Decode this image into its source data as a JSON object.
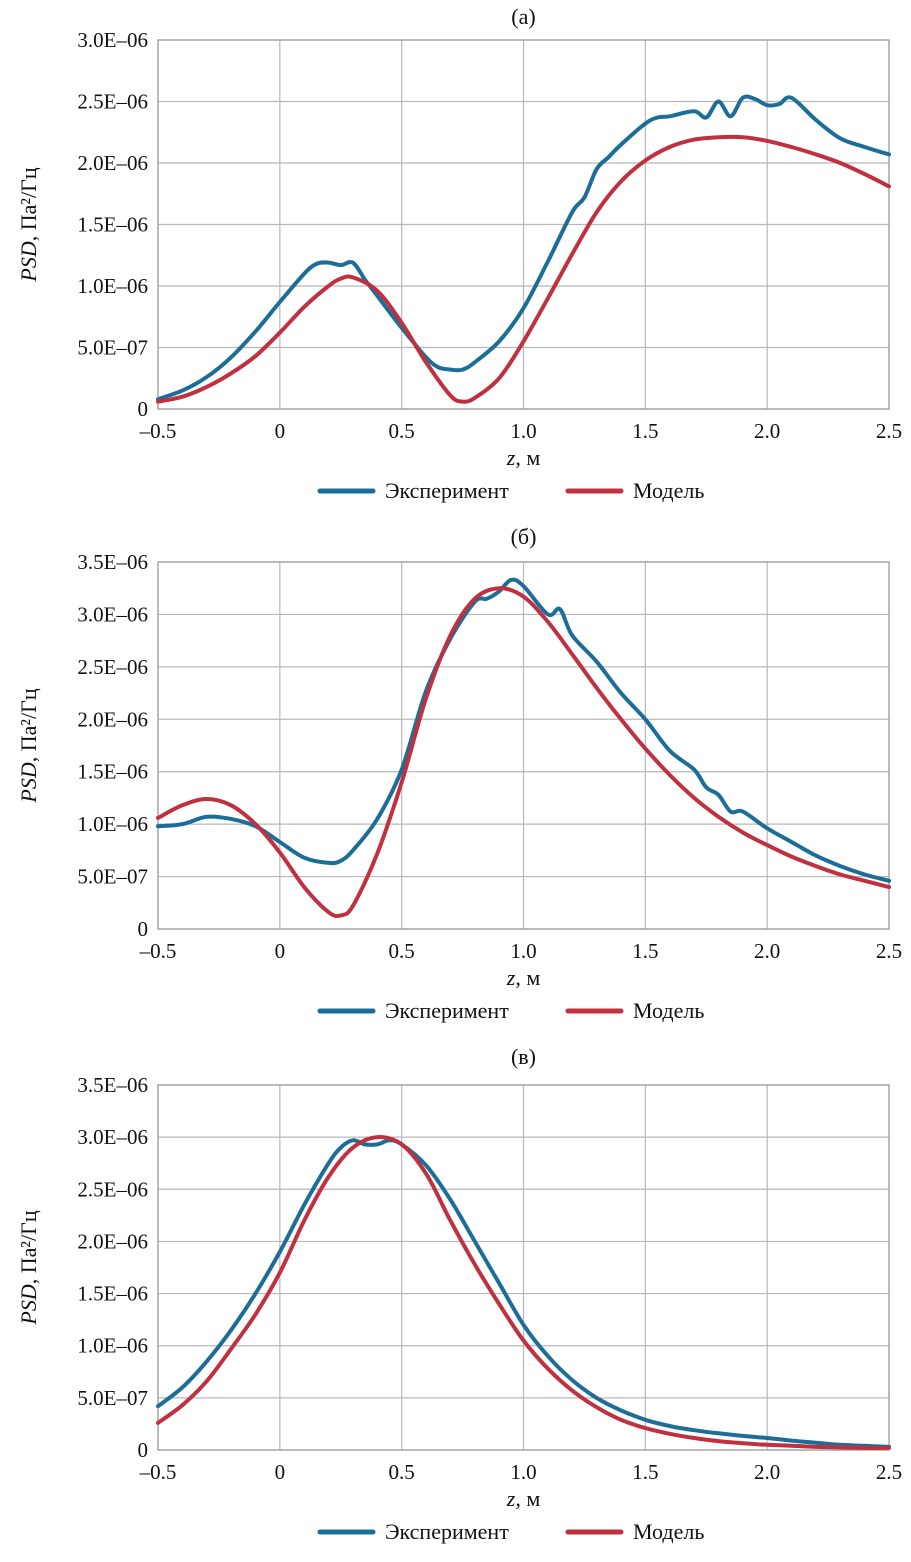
{
  "colors": {
    "experiment": "#1c6e98",
    "model": "#c0303f"
  },
  "chart_data": [
    {
      "type": "line",
      "title": "(а)",
      "xlabel_var": "z",
      "xlabel_unit": ", м",
      "ylabel_var": "PSD",
      "ylabel_unit": ", Па²/Гц",
      "xlim": [
        -0.5,
        2.5
      ],
      "ylim": [
        0,
        3e-06
      ],
      "xticks": [
        -0.5,
        0,
        0.5,
        1.0,
        1.5,
        2.0,
        2.5
      ],
      "xtick_labels": [
        "–0.5",
        "0",
        "0.5",
        "1.0",
        "1.5",
        "2.0",
        "2.5"
      ],
      "yticks": [
        0,
        5e-07,
        1e-06,
        1.5e-06,
        2e-06,
        2.5e-06,
        3e-06
      ],
      "ytick_labels": [
        "0",
        "5.0E–07",
        "1.0E–06",
        "1.5E–06",
        "2.0E–06",
        "2.5E–06",
        "3.0E–06"
      ],
      "grid": true,
      "legend_position": "bottom",
      "series": [
        {
          "name": "Эксперимент",
          "color": "#1c6e98",
          "x": [
            -0.5,
            -0.4,
            -0.3,
            -0.2,
            -0.1,
            0.0,
            0.1,
            0.15,
            0.2,
            0.25,
            0.3,
            0.35,
            0.4,
            0.5,
            0.6,
            0.65,
            0.7,
            0.75,
            0.8,
            0.9,
            1.0,
            1.1,
            1.2,
            1.25,
            1.3,
            1.35,
            1.4,
            1.5,
            1.55,
            1.6,
            1.7,
            1.75,
            1.8,
            1.85,
            1.9,
            1.95,
            2.0,
            2.05,
            2.1,
            2.2,
            2.3,
            2.4,
            2.5
          ],
          "y": [
            8e-08,
            1.5e-07,
            2.6e-07,
            4.2e-07,
            6.3e-07,
            8.7e-07,
            1.1e-06,
            1.18e-06,
            1.19e-06,
            1.17e-06,
            1.19e-06,
            1.05e-06,
            9.2e-07,
            6.6e-07,
            4.2e-07,
            3.4e-07,
            3.2e-07,
            3.2e-07,
            3.8e-07,
            5.5e-07,
            8.2e-07,
            1.2e-06,
            1.6e-06,
            1.72e-06,
            1.95e-06,
            2.05e-06,
            2.15e-06,
            2.32e-06,
            2.37e-06,
            2.38e-06,
            2.42e-06,
            2.37e-06,
            2.5e-06,
            2.38e-06,
            2.53e-06,
            2.52e-06,
            2.47e-06,
            2.48e-06,
            2.53e-06,
            2.35e-06,
            2.2e-06,
            2.13e-06,
            2.07e-06
          ]
        },
        {
          "name": "Модель",
          "color": "#c0303f",
          "x": [
            -0.5,
            -0.4,
            -0.3,
            -0.2,
            -0.1,
            0.0,
            0.1,
            0.2,
            0.25,
            0.3,
            0.4,
            0.5,
            0.6,
            0.7,
            0.75,
            0.8,
            0.9,
            1.0,
            1.1,
            1.2,
            1.3,
            1.4,
            1.5,
            1.6,
            1.7,
            1.8,
            1.9,
            2.0,
            2.1,
            2.2,
            2.3,
            2.4,
            2.5
          ],
          "y": [
            6e-08,
            1e-07,
            1.8e-07,
            2.9e-07,
            4.3e-07,
            6.2e-07,
            8.3e-07,
            1e-06,
            1.06e-06,
            1.07e-06,
            9.6e-07,
            7e-07,
            3.8e-07,
            1.1e-07,
            6e-08,
            9e-08,
            2.5e-07,
            5.5e-07,
            9e-07,
            1.26e-06,
            1.6e-06,
            1.85e-06,
            2.02e-06,
            2.13e-06,
            2.19e-06,
            2.21e-06,
            2.21e-06,
            2.18e-06,
            2.13e-06,
            2.07e-06,
            2e-06,
            1.91e-06,
            1.81e-06
          ]
        }
      ]
    },
    {
      "type": "line",
      "title": "(б)",
      "xlabel_var": "z",
      "xlabel_unit": ", м",
      "ylabel_var": "PSD",
      "ylabel_unit": ", Па²/Гц",
      "xlim": [
        -0.5,
        2.5
      ],
      "ylim": [
        0,
        3.5e-06
      ],
      "xticks": [
        -0.5,
        0,
        0.5,
        1.0,
        1.5,
        2.0,
        2.5
      ],
      "xtick_labels": [
        "–0.5",
        "0",
        "0.5",
        "1.0",
        "1.5",
        "2.0",
        "2.5"
      ],
      "yticks": [
        0,
        5e-07,
        1e-06,
        1.5e-06,
        2e-06,
        2.5e-06,
        3e-06,
        3.5e-06
      ],
      "ytick_labels": [
        "0",
        "5.0E–07",
        "1.0E–06",
        "1.5E–06",
        "2.0E–06",
        "2.5E–06",
        "3.0E–06",
        "3.5E–06"
      ],
      "grid": true,
      "legend_position": "bottom",
      "series": [
        {
          "name": "Эксперимент",
          "color": "#1c6e98",
          "x": [
            -0.5,
            -0.4,
            -0.3,
            -0.2,
            -0.1,
            0.0,
            0.1,
            0.2,
            0.25,
            0.3,
            0.4,
            0.5,
            0.6,
            0.7,
            0.8,
            0.85,
            0.9,
            0.95,
            1.0,
            1.1,
            1.15,
            1.2,
            1.3,
            1.4,
            1.5,
            1.6,
            1.7,
            1.75,
            1.8,
            1.85,
            1.9,
            2.0,
            2.1,
            2.2,
            2.3,
            2.4,
            2.5
          ],
          "y": [
            9.8e-07,
            1e-06,
            1.07e-06,
            1.05e-06,
            9.8e-07,
            8.3e-07,
            6.8e-07,
            6.3e-07,
            6.5e-07,
            7.5e-07,
            1.05e-06,
            1.52e-06,
            2.27e-06,
            2.77e-06,
            3.12e-06,
            3.15e-06,
            3.22e-06,
            3.33e-06,
            3.27e-06,
            3e-06,
            3.05e-06,
            2.8e-06,
            2.55e-06,
            2.25e-06,
            2e-06,
            1.7e-06,
            1.52e-06,
            1.35e-06,
            1.28e-06,
            1.12e-06,
            1.12e-06,
            9.6e-07,
            8.3e-07,
            7e-07,
            6e-07,
            5.2e-07,
            4.6e-07
          ]
        },
        {
          "name": "Модель",
          "color": "#c0303f",
          "x": [
            -0.5,
            -0.4,
            -0.3,
            -0.2,
            -0.1,
            0.0,
            0.1,
            0.2,
            0.25,
            0.3,
            0.4,
            0.5,
            0.6,
            0.7,
            0.8,
            0.9,
            1.0,
            1.1,
            1.2,
            1.3,
            1.4,
            1.5,
            1.6,
            1.7,
            1.8,
            1.9,
            2.0,
            2.1,
            2.2,
            2.3,
            2.4,
            2.5
          ],
          "y": [
            1.06e-06,
            1.18e-06,
            1.24e-06,
            1.18e-06,
            1e-06,
            7.3e-07,
            4e-07,
            1.6e-07,
            1.3e-07,
            2.2e-07,
            7.2e-07,
            1.4e-06,
            2.2e-06,
            2.8e-06,
            3.15e-06,
            3.25e-06,
            3.17e-06,
            2.93e-06,
            2.62e-06,
            2.3e-06,
            2e-06,
            1.72e-06,
            1.47e-06,
            1.25e-06,
            1.07e-06,
            9.2e-07,
            8e-07,
            6.9e-07,
            6e-07,
            5.2e-07,
            4.6e-07,
            4e-07
          ]
        }
      ]
    },
    {
      "type": "line",
      "title": "(в)",
      "xlabel_var": "z",
      "xlabel_unit": ", м",
      "ylabel_var": "PSD",
      "ylabel_unit": ", Па²/Гц",
      "xlim": [
        -0.5,
        2.5
      ],
      "ylim": [
        0,
        3.5e-06
      ],
      "xticks": [
        -0.5,
        0,
        0.5,
        1.0,
        1.5,
        2.0,
        2.5
      ],
      "xtick_labels": [
        "–0.5",
        "0",
        "0.5",
        "1.0",
        "1.5",
        "2.0",
        "2.5"
      ],
      "yticks": [
        0,
        5e-07,
        1e-06,
        1.5e-06,
        2e-06,
        2.5e-06,
        3e-06,
        3.5e-06
      ],
      "ytick_labels": [
        "0",
        "5.0E–07",
        "1.0E–06",
        "1.5E–06",
        "2.0E–06",
        "2.5E–06",
        "3.0E–06",
        "3.5E–06"
      ],
      "grid": true,
      "legend_position": "bottom",
      "series": [
        {
          "name": "Эксперимент",
          "color": "#1c6e98",
          "x": [
            -0.5,
            -0.4,
            -0.3,
            -0.2,
            -0.1,
            0.0,
            0.1,
            0.2,
            0.25,
            0.3,
            0.35,
            0.4,
            0.45,
            0.5,
            0.6,
            0.7,
            0.8,
            0.9,
            1.0,
            1.1,
            1.2,
            1.3,
            1.4,
            1.5,
            1.6,
            1.7,
            1.8,
            1.9,
            2.0,
            2.1,
            2.2,
            2.3,
            2.4,
            2.5
          ],
          "y": [
            4.2e-07,
            6e-07,
            8.5e-07,
            1.15e-06,
            1.5e-06,
            1.9e-06,
            2.35e-06,
            2.75e-06,
            2.9e-06,
            2.97e-06,
            2.93e-06,
            2.93e-06,
            2.97e-06,
            2.93e-06,
            2.73e-06,
            2.4e-06,
            2e-06,
            1.6e-06,
            1.2e-06,
            9e-07,
            6.7e-07,
            5e-07,
            3.8e-07,
            2.9e-07,
            2.3e-07,
            1.9e-07,
            1.6e-07,
            1.35e-07,
            1.15e-07,
            9e-08,
            7e-08,
            5e-08,
            4e-08,
            3e-08
          ]
        },
        {
          "name": "Модель",
          "color": "#c0303f",
          "x": [
            -0.5,
            -0.4,
            -0.3,
            -0.2,
            -0.1,
            0.0,
            0.1,
            0.2,
            0.3,
            0.4,
            0.5,
            0.6,
            0.7,
            0.8,
            0.9,
            1.0,
            1.1,
            1.2,
            1.3,
            1.4,
            1.5,
            1.6,
            1.7,
            1.8,
            1.9,
            2.0,
            2.1,
            2.2,
            2.3,
            2.4,
            2.5
          ],
          "y": [
            2.6e-07,
            4.3e-07,
            6.6e-07,
            9.7e-07,
            1.3e-06,
            1.7e-06,
            2.2e-06,
            2.62e-06,
            2.9e-06,
            3e-06,
            2.93e-06,
            2.65e-06,
            2.2e-06,
            1.78e-06,
            1.4e-06,
            1.05e-06,
            7.8e-07,
            5.7e-07,
            4.1e-07,
            2.9e-07,
            2.1e-07,
            1.55e-07,
            1.15e-07,
            8.5e-08,
            6.5e-08,
            5e-08,
            4e-08,
            3e-08,
            2.5e-08,
            2e-08,
            2e-08
          ]
        }
      ]
    }
  ]
}
